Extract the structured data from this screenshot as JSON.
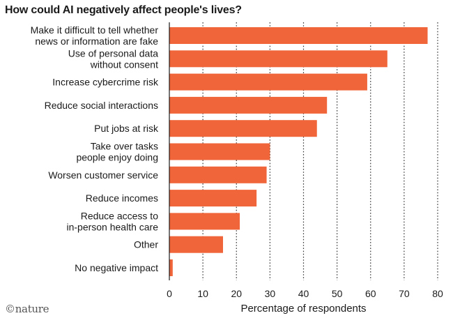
{
  "chart_data": {
    "type": "bar",
    "orientation": "horizontal",
    "title": "How could AI negatively affect people's lives?",
    "xlabel": "Percentage of respondents",
    "ylabel": "",
    "xlim": [
      0,
      80
    ],
    "xticks": [
      0,
      10,
      20,
      30,
      40,
      50,
      60,
      70,
      80
    ],
    "grid": "vertical dotted",
    "categories": [
      [
        "Make it difficult to tell whether",
        "news or information are fake"
      ],
      [
        "Use of personal data",
        "without consent"
      ],
      [
        "Increase cybercrime risk"
      ],
      [
        "Reduce social interactions"
      ],
      [
        "Put jobs at risk"
      ],
      [
        "Take over tasks",
        "people enjoy doing"
      ],
      [
        "Worsen customer service"
      ],
      [
        "Reduce incomes"
      ],
      [
        "Reduce access to",
        "in-person health care"
      ],
      [
        "Other"
      ],
      [
        "No negative impact"
      ]
    ],
    "values": [
      77,
      65,
      59,
      47,
      44,
      30,
      29,
      26,
      21,
      16,
      1
    ],
    "bar_color": "#f0663a",
    "grid_color": "#333333"
  },
  "credit": "©nature"
}
